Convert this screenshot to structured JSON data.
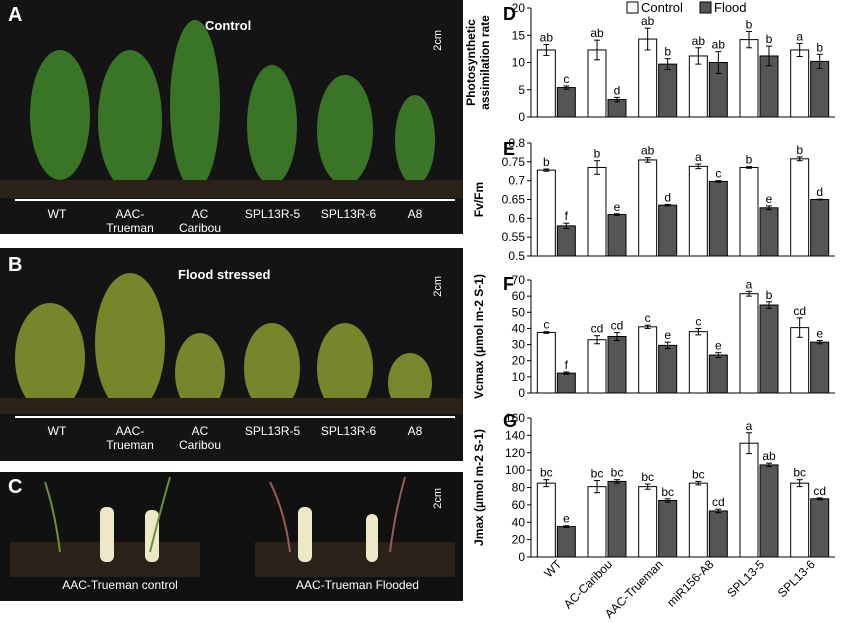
{
  "photos": {
    "A": {
      "letter": "A",
      "title": "Control",
      "scale": "2cm",
      "labels": [
        "WT",
        "AAC-\nTrueman",
        "AC\nCaribou",
        "SPL13R-5",
        "SPL13R-6",
        "A8"
      ]
    },
    "B": {
      "letter": "B",
      "title": "Flood stressed",
      "scale": "2cm",
      "labels": [
        "WT",
        "AAC-\nTrueman",
        "AC\nCaribou",
        "SPL13R-5",
        "SPL13R-6",
        "A8"
      ]
    },
    "C": {
      "letter": "C",
      "scale": "2cm",
      "labels": [
        "AAC-Trueman control",
        "AAC-Trueman Flooded"
      ]
    }
  },
  "legend": {
    "control": "Control",
    "flood": "Flood"
  },
  "chart_data": [
    {
      "panel": "D",
      "type": "bar",
      "ylabel": "Photosynthetic\nassimilation rate",
      "ylim": [
        0,
        20
      ],
      "yticks": [
        0,
        5,
        10,
        15,
        20
      ],
      "categories": [
        "WT",
        "AC-Caribou",
        "AAC-Trueman",
        "miR156-A8",
        "SPL13-5",
        "SPL13-6"
      ],
      "series": [
        {
          "name": "Control",
          "values": [
            12.3,
            12.3,
            14.3,
            11.2,
            14.2,
            12.3
          ],
          "err": [
            1.0,
            1.8,
            2.0,
            1.5,
            1.5,
            1.2
          ],
          "letters": [
            "ab",
            "ab",
            "ab",
            "ab",
            "b",
            "a"
          ]
        },
        {
          "name": "Flood",
          "values": [
            5.4,
            3.2,
            9.7,
            10.0,
            11.2,
            10.2
          ],
          "err": [
            0.3,
            0.4,
            1.0,
            2.0,
            1.8,
            1.3
          ],
          "letters": [
            "c",
            "d",
            "b",
            "ab",
            "b",
            "b"
          ]
        }
      ]
    },
    {
      "panel": "E",
      "type": "bar",
      "ylabel": "Fv/Fm",
      "ylim": [
        0.5,
        0.8
      ],
      "yticks": [
        0.5,
        0.55,
        0.6,
        0.65,
        0.7,
        0.75,
        0.8
      ],
      "categories": [
        "WT",
        "AC-Caribou",
        "AAC-Trueman",
        "miR156-A8",
        "SPL13-5",
        "SPL13-6"
      ],
      "series": [
        {
          "name": "Control",
          "values": [
            0.728,
            0.735,
            0.755,
            0.738,
            0.735,
            0.758
          ],
          "err": [
            0.003,
            0.018,
            0.006,
            0.006,
            0.002,
            0.005
          ],
          "letters": [
            "b",
            "b",
            "ab",
            "a",
            "b",
            "b"
          ]
        },
        {
          "name": "Flood",
          "values": [
            0.58,
            0.61,
            0.635,
            0.698,
            0.628,
            0.65
          ],
          "err": [
            0.007,
            0.002,
            0.002,
            0.002,
            0.005,
            0.001
          ],
          "letters": [
            "f",
            "e",
            "d",
            "c",
            "e",
            "d"
          ]
        }
      ]
    },
    {
      "panel": "F",
      "type": "bar",
      "ylabel": "Vcmax (µmol m-2 S-1)",
      "ylim": [
        0,
        70
      ],
      "yticks": [
        0,
        10,
        20,
        30,
        40,
        50,
        60,
        70
      ],
      "categories": [
        "WT",
        "AC-Caribou",
        "AAC-Trueman",
        "miR156-A8",
        "SPL13-5",
        "SPL13-6"
      ],
      "series": [
        {
          "name": "Control",
          "values": [
            37.5,
            33,
            41,
            38,
            61.5,
            40.5
          ],
          "err": [
            0.5,
            2.5,
            1.0,
            2.0,
            1.5,
            6.0
          ],
          "letters": [
            "c",
            "cd",
            "c",
            "c",
            "a",
            "cd"
          ]
        },
        {
          "name": "Flood",
          "values": [
            12.3,
            35,
            29.5,
            23.5,
            54.5,
            31.5
          ],
          "err": [
            0.7,
            2.5,
            2.0,
            1.5,
            2.0,
            1.0
          ],
          "letters": [
            "f",
            "cd",
            "e",
            "e",
            "b",
            "e"
          ]
        }
      ]
    },
    {
      "panel": "G",
      "type": "bar",
      "ylabel": "Jmax (µmol m-2 S-1)",
      "ylim": [
        0,
        160
      ],
      "yticks": [
        0,
        20,
        40,
        60,
        80,
        100,
        120,
        140,
        160
      ],
      "categories": [
        "WT",
        "AC-Caribou",
        "AAC-Trueman",
        "miR156-A8",
        "SPL13-5",
        "SPL13-6"
      ],
      "series": [
        {
          "name": "Control",
          "values": [
            85,
            81,
            81,
            85,
            131,
            85
          ],
          "err": [
            4,
            7,
            3,
            2,
            12,
            4
          ],
          "letters": [
            "bc",
            "bc",
            "bc",
            "bc",
            "a",
            "bc"
          ]
        },
        {
          "name": "Flood",
          "values": [
            35,
            87,
            65,
            53,
            106,
            67
          ],
          "err": [
            1,
            2,
            2,
            2,
            2,
            1
          ],
          "letters": [
            "e",
            "bc",
            "bc",
            "cd",
            "ab",
            "cd"
          ]
        }
      ]
    }
  ]
}
